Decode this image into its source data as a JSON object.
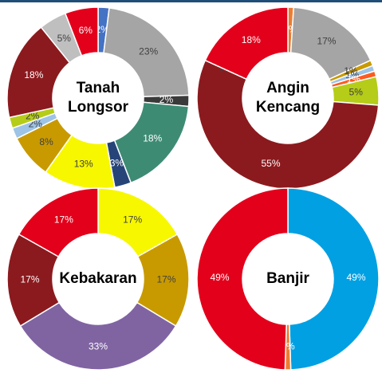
{
  "chart_data": [
    {
      "type": "donut",
      "title": "Tanah Longsor",
      "values": [
        2,
        23,
        2,
        18,
        3,
        13,
        8,
        2,
        2,
        18,
        5,
        6
      ],
      "value_labels": [
        "2%",
        "23%",
        "2%",
        "18%",
        "3%",
        "13%",
        "8%",
        "2%",
        "2%",
        "18%",
        "5%",
        "6%"
      ],
      "colors": [
        "#4472c4",
        "#a5a5a5",
        "#3a3a3a",
        "#3e8b74",
        "#264478",
        "#f7f700",
        "#c89a00",
        "#9dc3e6",
        "#b5cc18",
        "#8b1a1e",
        "#bfbfbf",
        "#e3001b"
      ]
    },
    {
      "type": "donut",
      "title": "Angin Kencang",
      "values": [
        1,
        17,
        1,
        1,
        1,
        5,
        55,
        0,
        18
      ],
      "value_labels": [
        "1%",
        "17%",
        "1%",
        "1%",
        "1%",
        "5%",
        "55%",
        "0%",
        "18%"
      ],
      "colors": [
        "#ed7d31",
        "#a5a5a5",
        "#c89a00",
        "#9dc3e6",
        "#ff5a1f",
        "#b5cc18",
        "#8b1a1e",
        "#bfbfbf",
        "#e3001b"
      ]
    },
    {
      "type": "donut",
      "title": "Kebakaran",
      "values": [
        17,
        17,
        33,
        17,
        17
      ],
      "value_labels": [
        "17%",
        "17%",
        "33%",
        "17%",
        "17%"
      ],
      "colors": [
        "#f7f700",
        "#c89a00",
        "#8064a2",
        "#8b1a1e",
        "#e3001b"
      ]
    },
    {
      "type": "donut",
      "title": "Banjir",
      "values": [
        49,
        1,
        49
      ],
      "value_labels": [
        "49%",
        "1%",
        "49%"
      ],
      "colors": [
        "#00a0e3",
        "#ed7d31",
        "#e3001b"
      ]
    }
  ]
}
